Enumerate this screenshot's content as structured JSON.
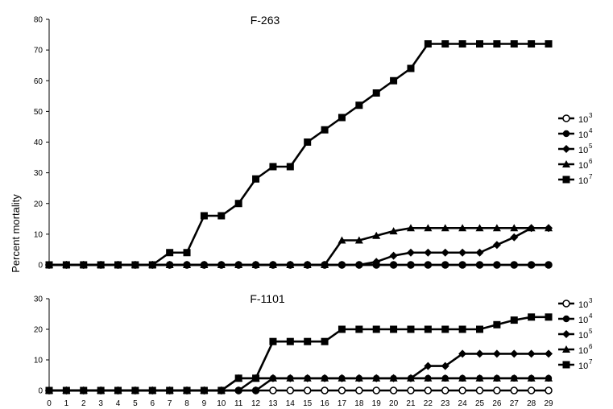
{
  "chart_data": [
    {
      "type": "line",
      "title": "F-263",
      "xlabel": "",
      "ylabel": "Percent mortality",
      "ylim": [
        0,
        80
      ],
      "yticks": [
        0,
        10,
        20,
        30,
        40,
        50,
        60,
        70,
        80
      ],
      "x": [
        0,
        1,
        2,
        3,
        4,
        5,
        6,
        7,
        8,
        9,
        10,
        11,
        12,
        13,
        14,
        15,
        16,
        17,
        18,
        19,
        20,
        21,
        22,
        23,
        24,
        25,
        26,
        27,
        28,
        29
      ],
      "legend_position": "right",
      "series": [
        {
          "name": "10^3",
          "base": "10",
          "exp": "3",
          "marker": "open-circle",
          "values": [
            0,
            0,
            0,
            0,
            0,
            0,
            0,
            0,
            0,
            0,
            0,
            0,
            0,
            0,
            0,
            0,
            0,
            0,
            0,
            0,
            0,
            0,
            0,
            0,
            0,
            0,
            0,
            0,
            0,
            0
          ]
        },
        {
          "name": "10^4",
          "base": "10",
          "exp": "4",
          "marker": "filled-circle",
          "values": [
            0,
            0,
            0,
            0,
            0,
            0,
            0,
            0,
            0,
            0,
            0,
            0,
            0,
            0,
            0,
            0,
            0,
            0,
            0,
            0,
            0,
            0,
            0,
            0,
            0,
            0,
            0,
            0,
            0,
            0
          ]
        },
        {
          "name": "10^5",
          "base": "10",
          "exp": "5",
          "marker": "diamond",
          "values": [
            0,
            0,
            0,
            0,
            0,
            0,
            0,
            0,
            0,
            0,
            0,
            0,
            0,
            0,
            0,
            0,
            0,
            0,
            0,
            1,
            3,
            4,
            4,
            4,
            4,
            4,
            6.5,
            9,
            12,
            12
          ]
        },
        {
          "name": "10^6",
          "base": "10",
          "exp": "6",
          "marker": "triangle",
          "values": [
            0,
            0,
            0,
            0,
            0,
            0,
            0,
            0,
            0,
            0,
            0,
            0,
            0,
            0,
            0,
            0,
            0,
            8,
            8,
            9.5,
            11,
            12,
            12,
            12,
            12,
            12,
            12,
            12,
            12,
            12
          ]
        },
        {
          "name": "10^7",
          "base": "10",
          "exp": "7",
          "marker": "square",
          "values": [
            0,
            0,
            0,
            0,
            0,
            0,
            0,
            4,
            4,
            16,
            16,
            20,
            28,
            32,
            32,
            40,
            44,
            48,
            52,
            56,
            60,
            64,
            72,
            72,
            72,
            72,
            72,
            72,
            72,
            72
          ]
        }
      ]
    },
    {
      "type": "line",
      "title": "F-1101",
      "xlabel": "",
      "ylabel": "Percent mortality",
      "ylim": [
        0,
        30
      ],
      "yticks": [
        0,
        10,
        20,
        30
      ],
      "x": [
        0,
        1,
        2,
        3,
        4,
        5,
        6,
        7,
        8,
        9,
        10,
        11,
        12,
        13,
        14,
        15,
        16,
        17,
        18,
        19,
        20,
        21,
        22,
        23,
        24,
        25,
        26,
        27,
        28,
        29
      ],
      "legend_position": "right",
      "series": [
        {
          "name": "10^3",
          "base": "10",
          "exp": "3",
          "marker": "open-circle",
          "values": [
            0,
            0,
            0,
            0,
            0,
            0,
            0,
            0,
            0,
            0,
            0,
            0,
            0,
            0,
            0,
            0,
            0,
            0,
            0,
            0,
            0,
            0,
            0,
            0,
            0,
            0,
            0,
            0,
            0,
            0
          ]
        },
        {
          "name": "10^4",
          "base": "10",
          "exp": "4",
          "marker": "filled-circle",
          "values": [
            0,
            0,
            0,
            0,
            0,
            0,
            0,
            0,
            0,
            0,
            0,
            0,
            4,
            4,
            4,
            4,
            4,
            4,
            4,
            4,
            4,
            4,
            4,
            4,
            4,
            4,
            4,
            4,
            4,
            4
          ]
        },
        {
          "name": "10^5",
          "base": "10",
          "exp": "5",
          "marker": "diamond",
          "values": [
            0,
            0,
            0,
            0,
            0,
            0,
            0,
            0,
            0,
            0,
            0,
            0,
            0,
            4,
            4,
            4,
            4,
            4,
            4,
            4,
            4,
            4,
            8,
            8,
            12,
            12,
            12,
            12,
            12,
            12
          ]
        },
        {
          "name": "10^6",
          "base": "10",
          "exp": "6",
          "marker": "triangle",
          "values": [
            0,
            0,
            0,
            0,
            0,
            0,
            0,
            0,
            0,
            0,
            0,
            4,
            4,
            4,
            4,
            4,
            4,
            4,
            4,
            4,
            4,
            4,
            4,
            4,
            4,
            4,
            4,
            4,
            4,
            4
          ]
        },
        {
          "name": "10^7",
          "base": "10",
          "exp": "7",
          "marker": "square",
          "values": [
            0,
            0,
            0,
            0,
            0,
            0,
            0,
            0,
            0,
            0,
            0,
            4,
            4,
            16,
            16,
            16,
            16,
            20,
            20,
            20,
            20,
            20,
            20,
            20,
            20,
            20,
            21.5,
            23,
            24,
            24
          ]
        }
      ]
    }
  ]
}
